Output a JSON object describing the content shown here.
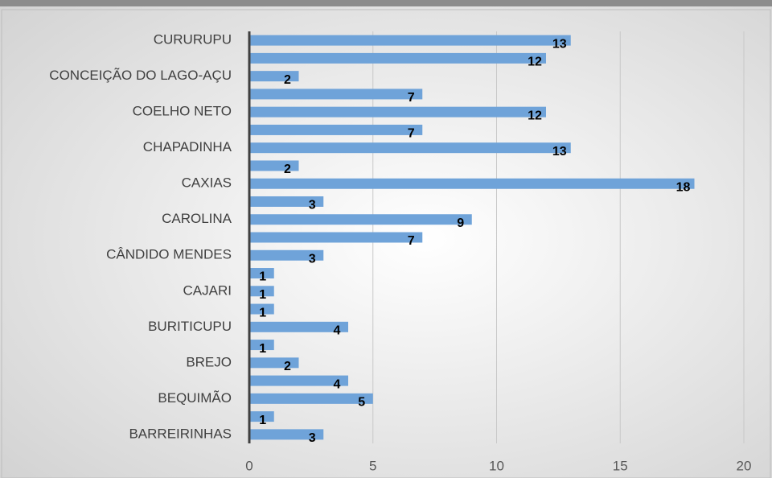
{
  "chart_data": {
    "type": "bar",
    "orientation": "horizontal",
    "categories": [
      "CURURUPU",
      null,
      "CONCEIÇÃO DO LAGO-AÇU",
      null,
      "COELHO NETO",
      null,
      "CHAPADINHA",
      null,
      "CAXIAS",
      null,
      "CAROLINA",
      null,
      "CÂNDIDO MENDES",
      null,
      "CAJARI",
      null,
      "BURITICUPU",
      null,
      "BREJO",
      null,
      "BEQUIMÃO",
      null,
      "BARREIRINHAS"
    ],
    "values": [
      13,
      12,
      2,
      7,
      12,
      7,
      13,
      2,
      18,
      3,
      9,
      7,
      3,
      1,
      1,
      1,
      4,
      1,
      2,
      4,
      5,
      1,
      3
    ],
    "color": "#6fa3d9",
    "xlim": [
      0,
      20
    ],
    "xticks": [
      0,
      5,
      10,
      15,
      20
    ],
    "grid": true
  }
}
